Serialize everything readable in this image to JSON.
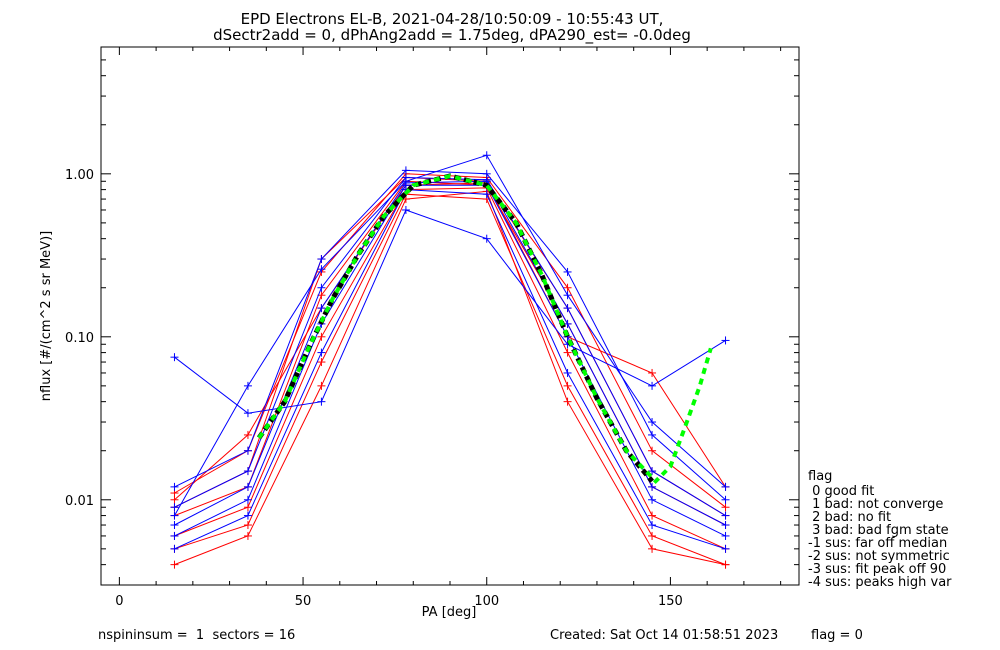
{
  "title_line1": "EPD Electrons EL-B, 2021-04-28/10:50:09 - 10:55:43 UT,",
  "title_line2": "dSectr2add = 0, dPhAng2add = 1.75deg, dPA290_est=  -0.0deg",
  "footer": {
    "left": "nspininsum =  1  sectors = 16",
    "created": "Created: Sat Oct 14 01:58:51 2023",
    "flag": "flag = 0"
  },
  "flag_legend": {
    "title": "flag",
    "items": [
      " 0 good fit",
      " 1 bad: not converge",
      " 2 bad: no fit",
      " 3 bad: bad fgm state",
      "-1 sus: far off median",
      "-2 sus: not symmetric",
      "-3 sus: fit peak off 90",
      "-4 sus: peaks high var"
    ]
  },
  "colors": {
    "series_a": "#ff0000",
    "series_b": "#0000ff",
    "median": "#000000",
    "fit": "#00ff00"
  },
  "chart_data": {
    "type": "line",
    "xlabel": "PA [deg]",
    "ylabel": "nflux [#/(cm^2 s sr MeV)]",
    "xlim": [
      -5,
      185
    ],
    "ylim": [
      0.003,
      6.0
    ],
    "yscale": "log",
    "xticks": [
      0,
      50,
      100,
      150
    ],
    "xtick_labels": [
      "0",
      "50",
      "100",
      "150"
    ],
    "yticks": [
      0.01,
      0.1,
      1.0
    ],
    "ytick_labels": [
      "0.01",
      "0.10",
      "1.00"
    ],
    "pa_bins": [
      15,
      35,
      55,
      78,
      100,
      122,
      145,
      165
    ],
    "series": [
      {
        "color": "red",
        "values": [
          0.008,
          0.012,
          0.18,
          0.9,
          0.85,
          0.12,
          0.012,
          0.007
        ]
      },
      {
        "color": "red",
        "values": [
          0.006,
          0.009,
          0.1,
          0.8,
          0.82,
          0.08,
          0.008,
          0.005
        ]
      },
      {
        "color": "red",
        "values": [
          0.011,
          0.02,
          0.25,
          1.0,
          0.95,
          0.2,
          0.02,
          0.009
        ]
      },
      {
        "color": "red",
        "values": [
          0.005,
          0.007,
          0.07,
          0.75,
          0.7,
          0.05,
          0.006,
          0.004
        ]
      },
      {
        "color": "red",
        "values": [
          0.009,
          0.015,
          0.3,
          0.95,
          0.9,
          0.15,
          0.015,
          0.008
        ]
      },
      {
        "color": "red",
        "values": [
          0.004,
          0.006,
          0.05,
          0.7,
          0.78,
          0.04,
          0.005,
          0.004
        ]
      },
      {
        "color": "red",
        "values": [
          0.01,
          0.025,
          0.15,
          0.85,
          0.88,
          0.1,
          0.06,
          0.012
        ]
      },
      {
        "color": "blue",
        "values": [
          0.009,
          0.015,
          0.2,
          0.95,
          0.92,
          0.15,
          0.015,
          0.008
        ]
      },
      {
        "color": "blue",
        "values": [
          0.006,
          0.01,
          0.12,
          0.85,
          0.85,
          0.1,
          0.01,
          0.006
        ]
      },
      {
        "color": "blue",
        "values": [
          0.012,
          0.02,
          0.3,
          1.05,
          1.0,
          0.25,
          0.025,
          0.01
        ]
      },
      {
        "color": "blue",
        "values": [
          0.005,
          0.008,
          0.08,
          0.8,
          0.75,
          0.06,
          0.007,
          0.005
        ]
      },
      {
        "color": "blue",
        "values": [
          0.008,
          0.05,
          0.26,
          0.9,
          1.3,
          0.18,
          0.03,
          0.012
        ]
      },
      {
        "color": "blue",
        "values": [
          0.007,
          0.012,
          0.15,
          0.88,
          0.9,
          0.12,
          0.012,
          0.007
        ]
      },
      {
        "color": "blue",
        "values": [
          0.075,
          0.034,
          0.04,
          0.6,
          0.4,
          0.09,
          0.05,
          0.095
        ]
      }
    ],
    "median": {
      "x": [
        38,
        45,
        52,
        58,
        65,
        72,
        80,
        90,
        100,
        108,
        115,
        122,
        130,
        138,
        145
      ],
      "values": [
        0.024,
        0.04,
        0.09,
        0.17,
        0.32,
        0.55,
        0.85,
        0.97,
        0.85,
        0.5,
        0.24,
        0.1,
        0.042,
        0.02,
        0.013
      ]
    },
    "fit": {
      "x": [
        38,
        45,
        52,
        58,
        65,
        72,
        80,
        90,
        100,
        108,
        115,
        122,
        130,
        138,
        146,
        150,
        154,
        158,
        161
      ],
      "values": [
        0.024,
        0.04,
        0.09,
        0.17,
        0.32,
        0.55,
        0.85,
        0.97,
        0.85,
        0.5,
        0.24,
        0.1,
        0.042,
        0.02,
        0.013,
        0.016,
        0.028,
        0.05,
        0.085
      ]
    }
  }
}
